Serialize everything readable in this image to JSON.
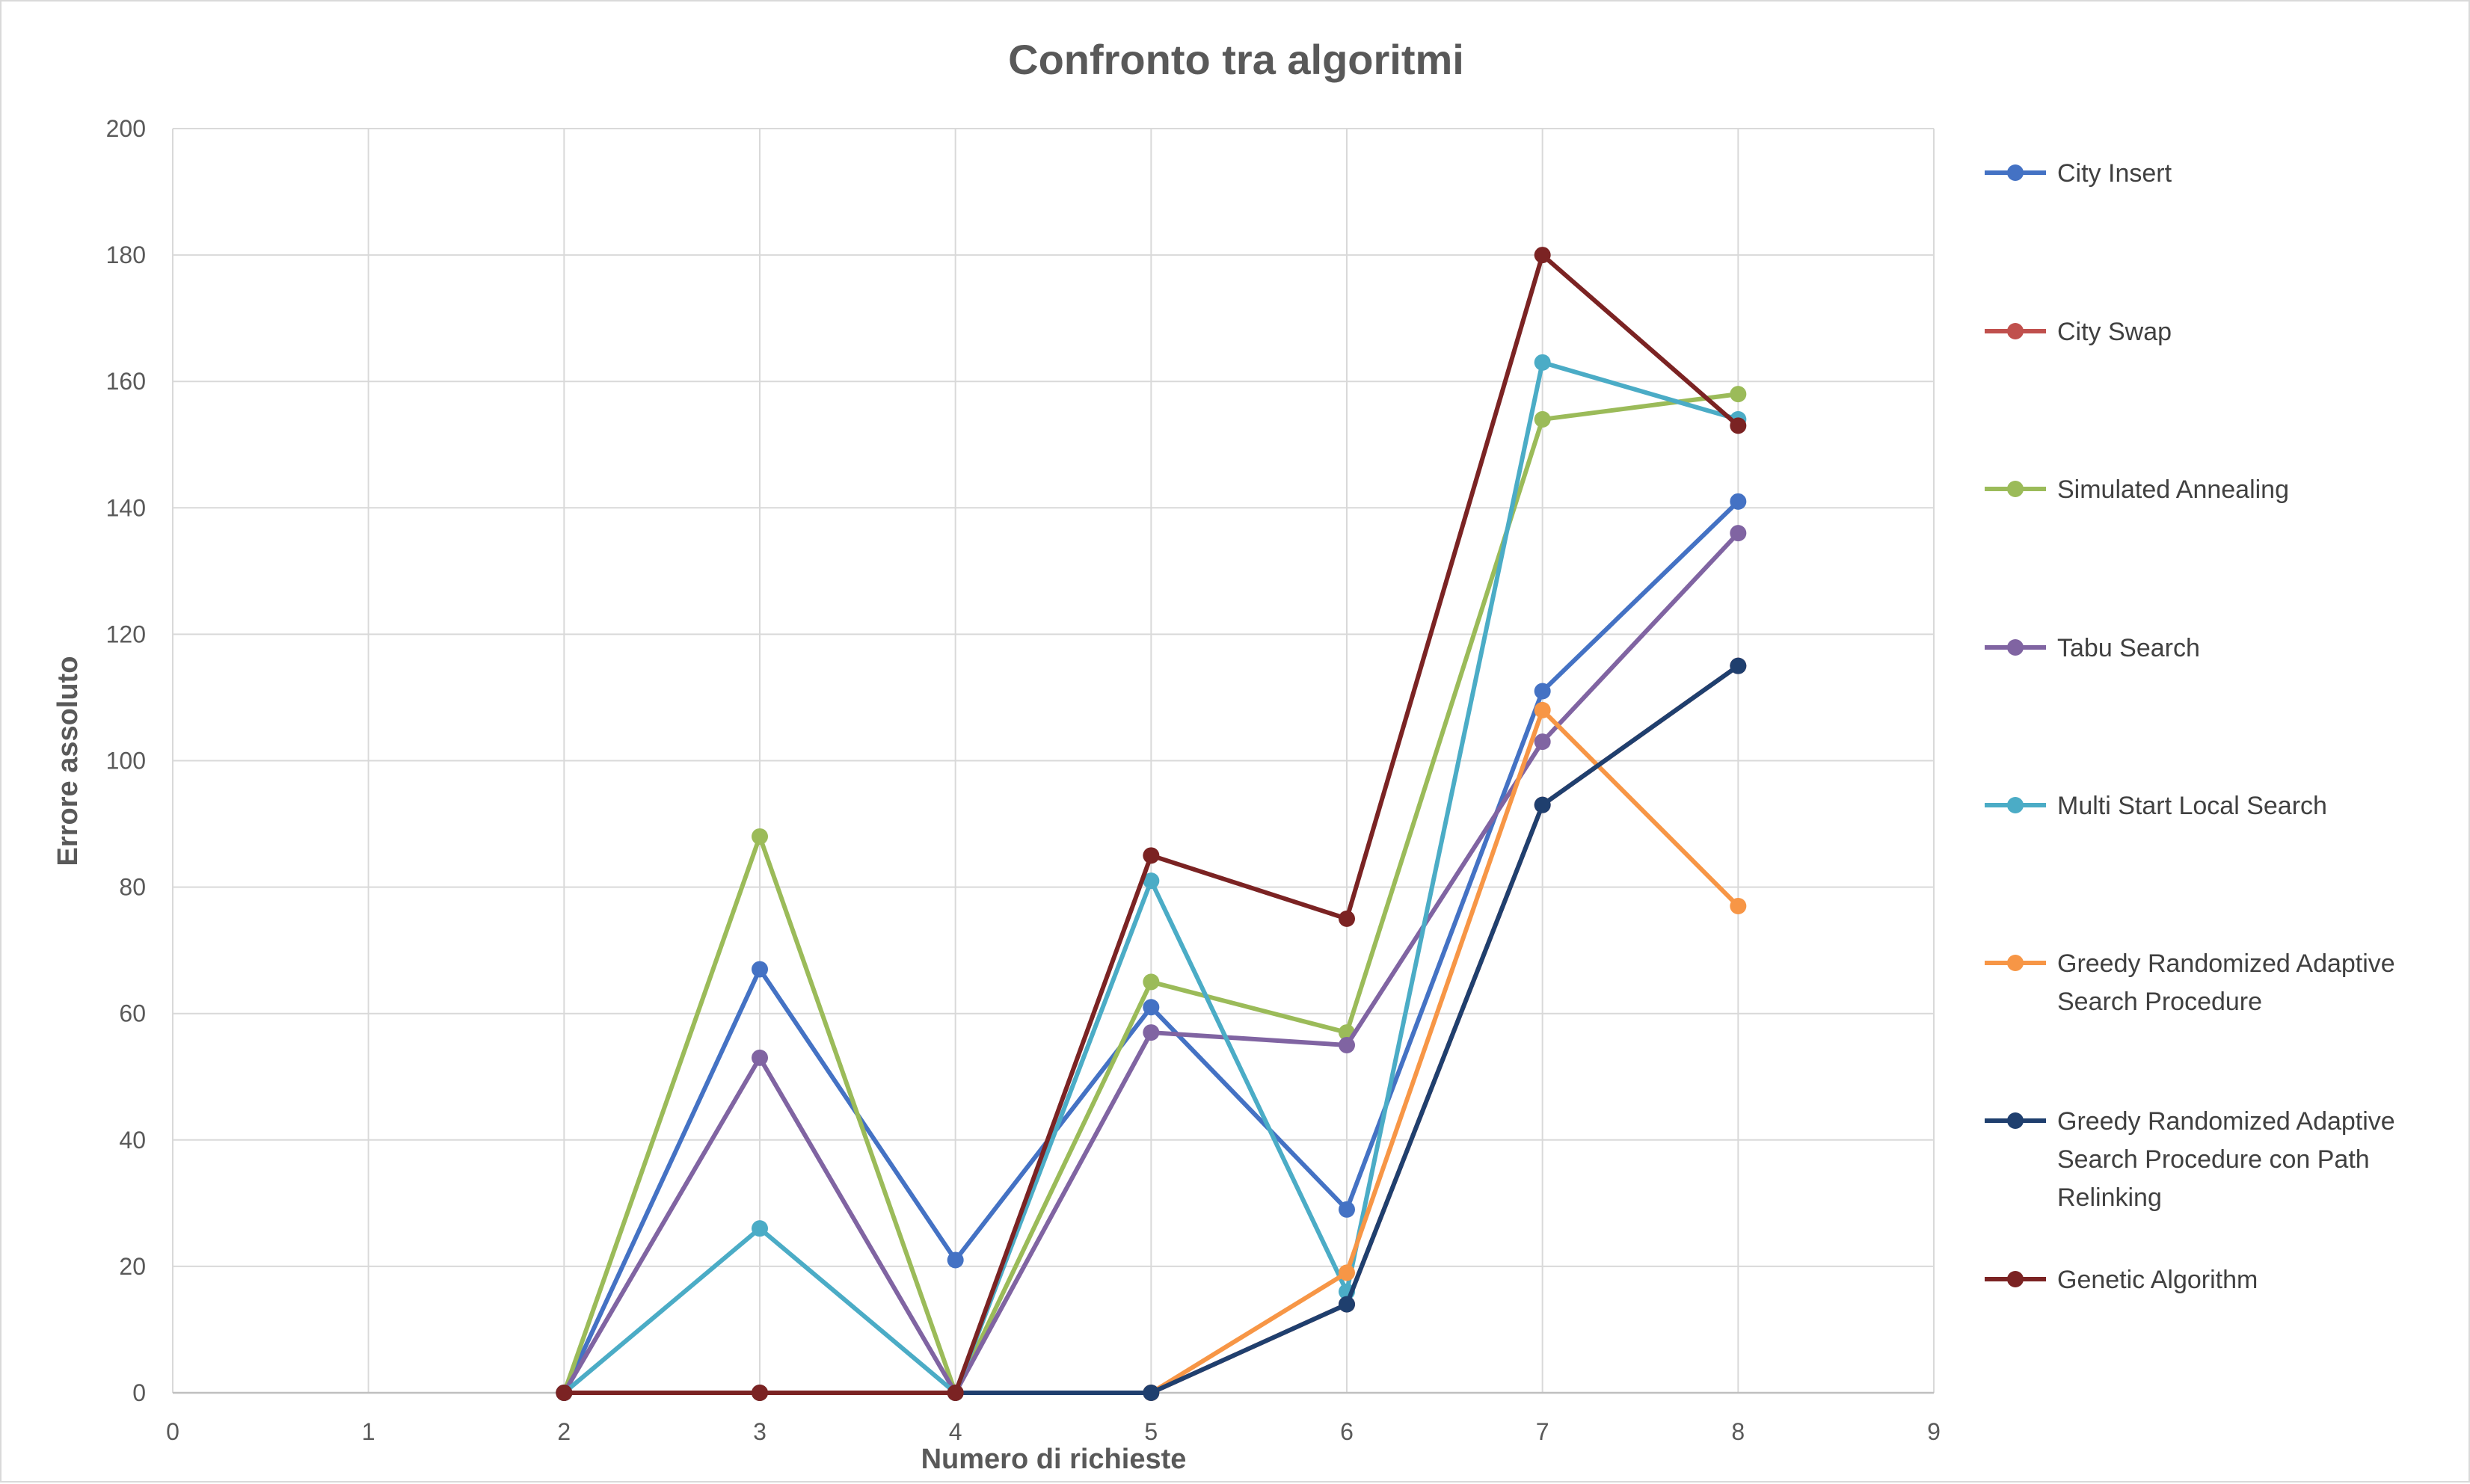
{
  "chart_data": {
    "type": "scatter",
    "title": "Confronto tra algoritmi",
    "xlabel": "Numero di richieste",
    "ylabel": "Errore assoluto",
    "xlim": [
      0,
      9
    ],
    "ylim": [
      0,
      200
    ],
    "x_ticks": [
      0,
      1,
      2,
      3,
      4,
      5,
      6,
      7,
      8,
      9
    ],
    "y_ticks": [
      0,
      20,
      40,
      60,
      80,
      100,
      120,
      140,
      160,
      180,
      200
    ],
    "grid": true,
    "legend_position": "right",
    "x": [
      2,
      3,
      4,
      5,
      6,
      7,
      8
    ],
    "series": [
      {
        "name": "City Insert",
        "color": "#4472c4",
        "values": [
          0,
          67,
          21,
          61,
          29,
          111,
          141
        ]
      },
      {
        "name": "City Swap",
        "color": "#c0504d",
        "values": [
          0,
          0,
          0,
          0,
          14,
          93,
          115
        ]
      },
      {
        "name": "Simulated Annealing",
        "color": "#9bbb59",
        "values": [
          0,
          88,
          0,
          65,
          57,
          154,
          158
        ]
      },
      {
        "name": "Tabu Search",
        "color": "#8064a2",
        "values": [
          0,
          53,
          0,
          57,
          55,
          103,
          136
        ]
      },
      {
        "name": "Multi Start Local Search",
        "color": "#4bacc6",
        "values": [
          0,
          26,
          0,
          81,
          16,
          163,
          154
        ]
      },
      {
        "name": "Greedy Randomized Adaptive Search Procedure",
        "color": "#f79646",
        "values": [
          0,
          0,
          0,
          0,
          19,
          108,
          77
        ]
      },
      {
        "name": "Greedy Randomized Adaptive Search Procedure con Path Relinking",
        "color": "#1f3f6e",
        "values": [
          0,
          0,
          0,
          0,
          14,
          93,
          115
        ]
      },
      {
        "name": "Genetic Algorithm",
        "color": "#7b2323",
        "values": [
          0,
          0,
          0,
          85,
          75,
          180,
          153
        ]
      }
    ],
    "legend_lines": [
      [
        "City Insert"
      ],
      [
        "City Swap"
      ],
      [
        "Simulated Annealing"
      ],
      [
        "Tabu Search"
      ],
      [
        "Multi Start Local Search"
      ],
      [
        "Greedy Randomized Adaptive",
        "Search Procedure"
      ],
      [
        "Greedy Randomized Adaptive",
        "Search Procedure con Path",
        "Relinking"
      ],
      [
        "Genetic Algorithm"
      ]
    ]
  }
}
